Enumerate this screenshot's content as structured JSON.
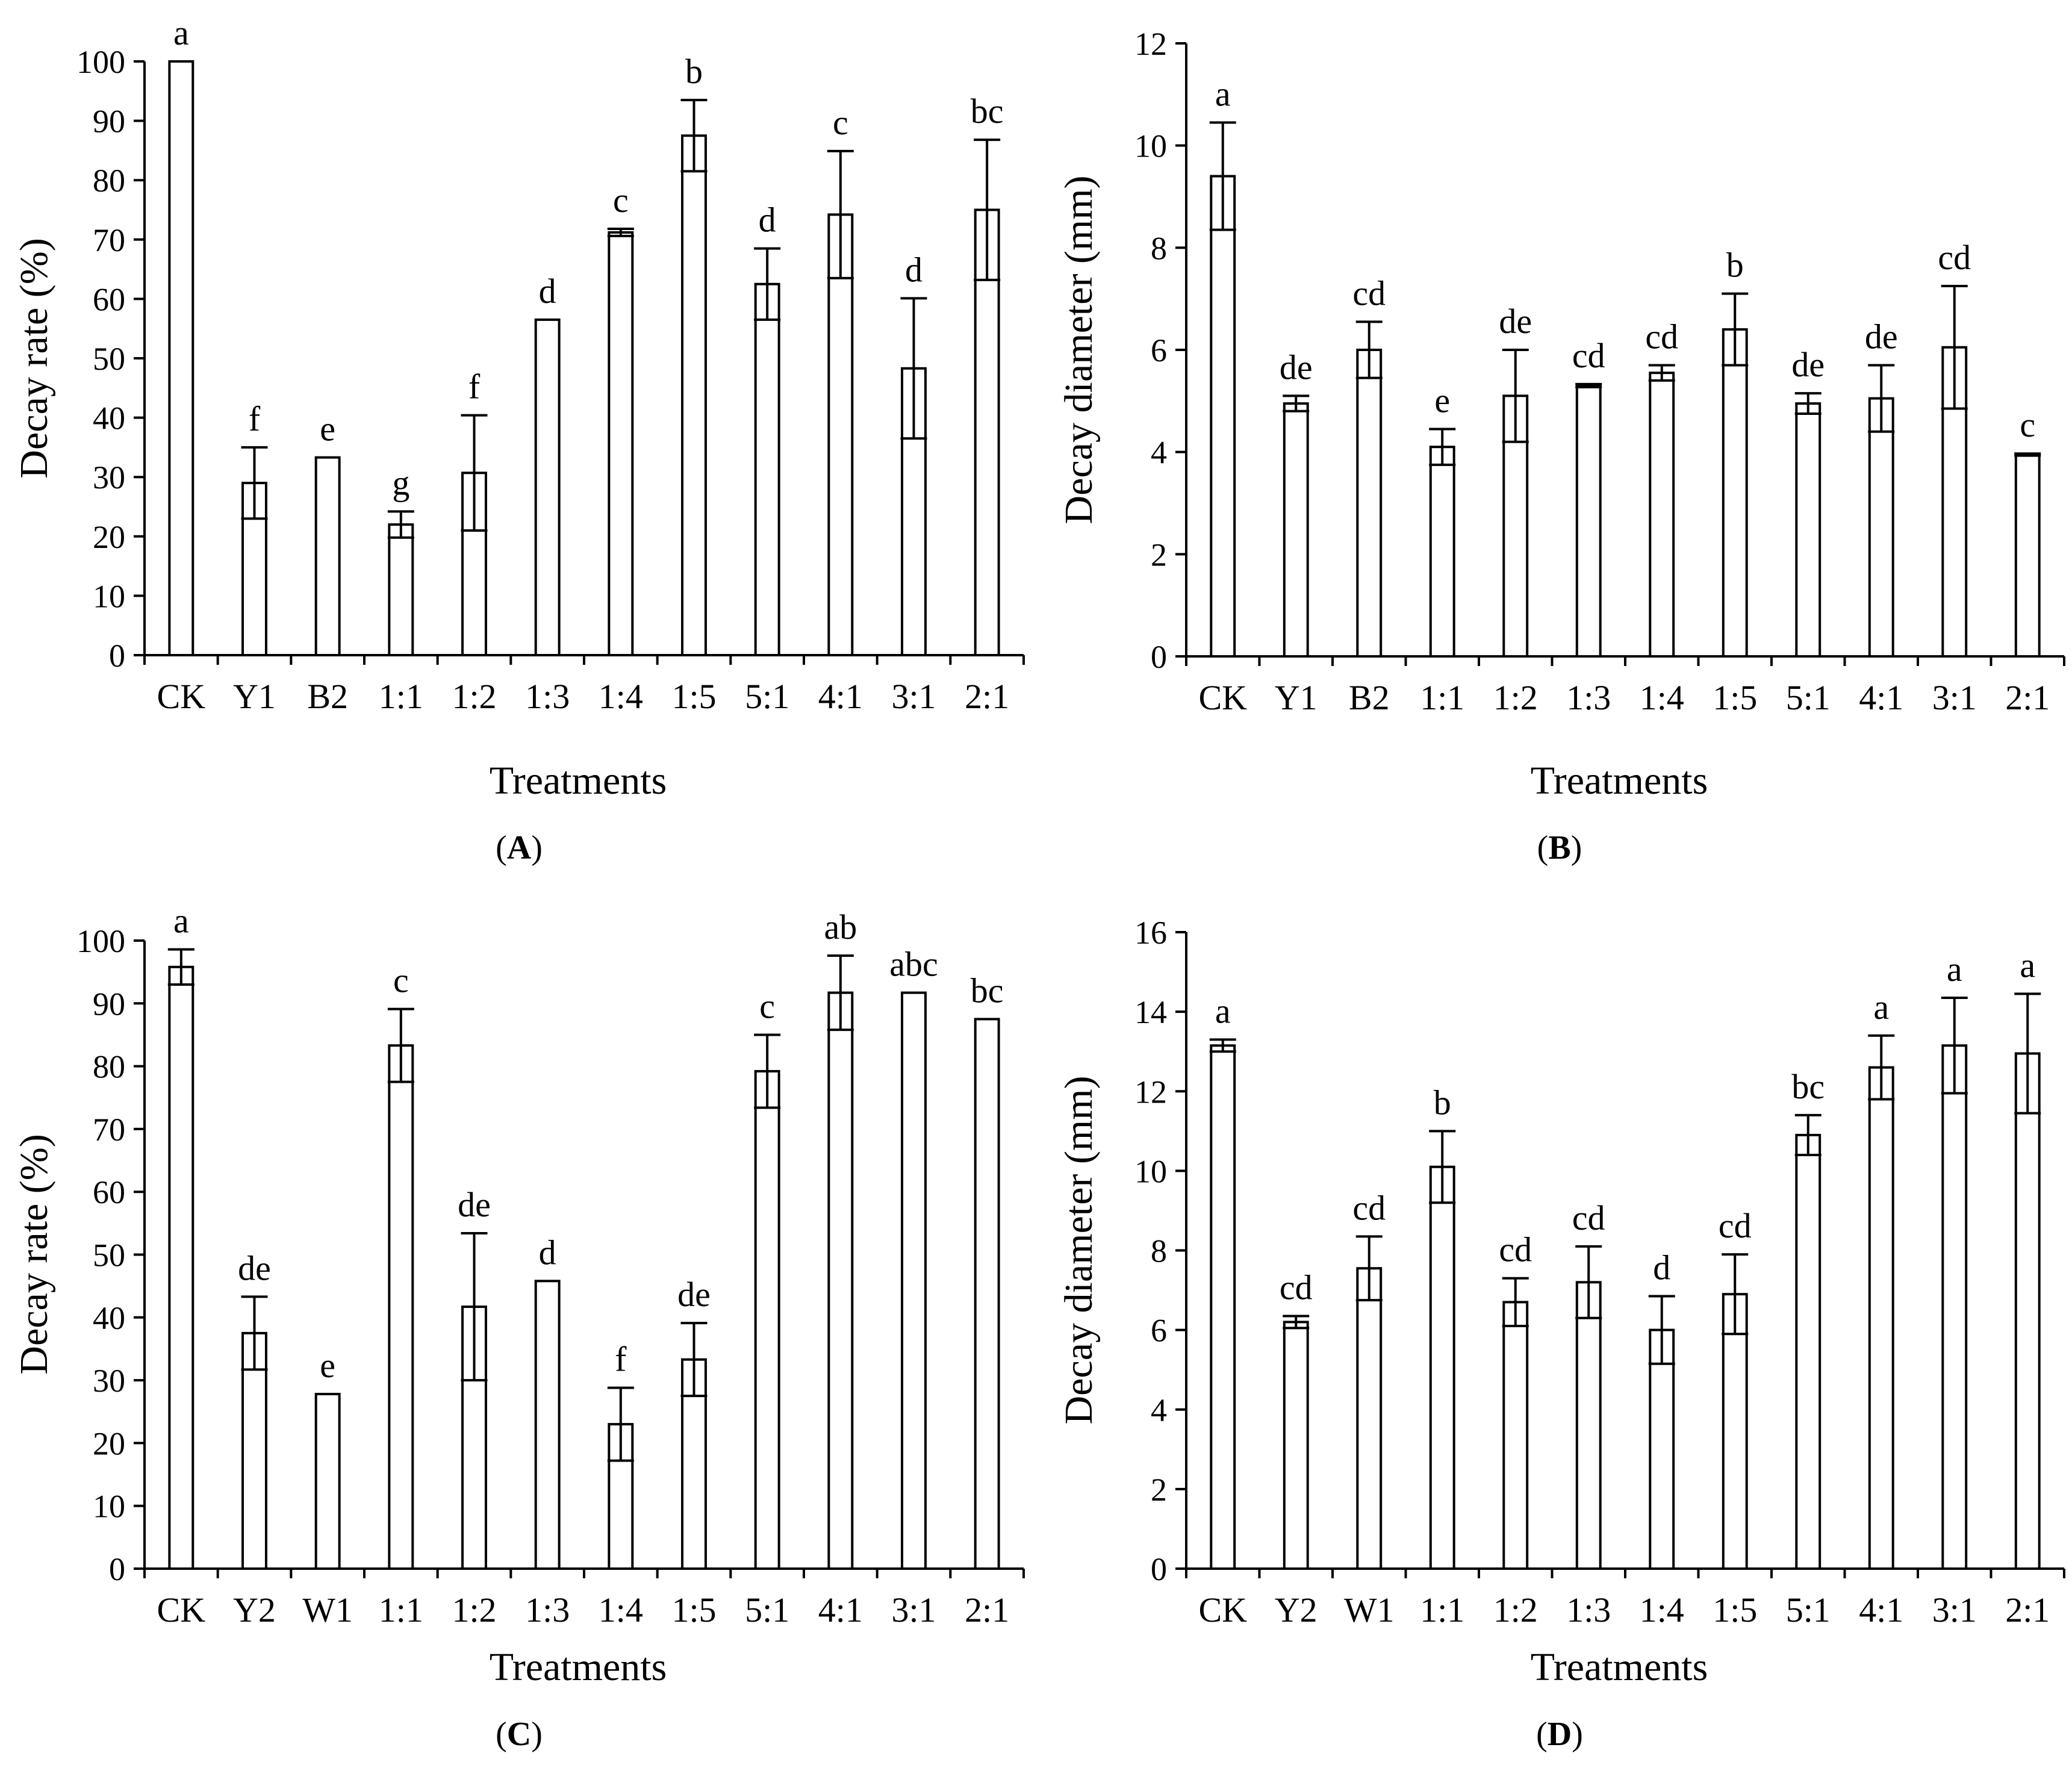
{
  "chart_data": [
    {
      "type": "bar",
      "panel": "A",
      "ylabel": "Decay rate (%)",
      "xlabel": "Treatments",
      "ylim": [
        0,
        100
      ],
      "yticks": [
        0,
        10,
        20,
        30,
        40,
        50,
        60,
        70,
        80,
        90,
        100
      ],
      "categories": [
        "CK",
        "Y1",
        "B2",
        "1:1",
        "1:2",
        "1:3",
        "1:4",
        "1:5",
        "5:1",
        "4:1",
        "3:1",
        "2:1"
      ],
      "values": [
        100,
        29,
        33.3,
        22,
        30.7,
        56.5,
        71.2,
        87.5,
        62.5,
        74.2,
        48.3,
        75
      ],
      "errors": [
        0,
        6,
        0,
        2.2,
        9.7,
        0,
        0.6,
        6,
        6,
        10.7,
        11.8,
        11.8
      ],
      "letters": [
        "a",
        "f",
        "e",
        "g",
        "f",
        "d",
        "c",
        "b",
        "d",
        "c",
        "d",
        "bc"
      ]
    },
    {
      "type": "bar",
      "panel": "B",
      "ylabel": "Decay diameter (mm)",
      "xlabel": "Treatments",
      "ylim": [
        0,
        12
      ],
      "yticks": [
        0,
        2,
        4,
        6,
        8,
        10,
        12
      ],
      "categories": [
        "CK",
        "Y1",
        "B2",
        "1:1",
        "1:2",
        "1:3",
        "1:4",
        "1:5",
        "5:1",
        "4:1",
        "3:1",
        "2:1"
      ],
      "values": [
        9.4,
        4.95,
        6,
        4.1,
        5.1,
        5.3,
        5.55,
        6.4,
        4.95,
        5.05,
        6.05,
        3.95
      ],
      "errors": [
        1.05,
        0.15,
        0.55,
        0.35,
        0.9,
        0.03,
        0.15,
        0.7,
        0.2,
        0.65,
        1.2,
        0.02
      ],
      "letters": [
        "a",
        "de",
        "cd",
        "e",
        "de",
        "cd",
        "cd",
        "b",
        "de",
        "de",
        "cd",
        "c"
      ]
    },
    {
      "type": "bar",
      "panel": "C",
      "ylabel": "Decay rate (%)",
      "xlabel": "Treatments",
      "ylim": [
        0,
        100
      ],
      "yticks": [
        0,
        10,
        20,
        30,
        40,
        50,
        60,
        70,
        80,
        90,
        100
      ],
      "categories": [
        "CK",
        "Y2",
        "W1",
        "1:1",
        "1:2",
        "1:3",
        "1:4",
        "1:5",
        "5:1",
        "4:1",
        "3:1",
        "2:1"
      ],
      "values": [
        95.8,
        37.5,
        27.8,
        83.3,
        41.7,
        45.8,
        23,
        33.3,
        79.2,
        91.7,
        91.7,
        87.5
      ],
      "errors": [
        2.8,
        5.8,
        0,
        5.8,
        11.7,
        0,
        5.8,
        5.8,
        5.8,
        5.9,
        0,
        0
      ],
      "letters": [
        "a",
        "de",
        "e",
        "c",
        "de",
        "d",
        "f",
        "de",
        "c",
        "ab",
        "abc",
        "bc"
      ]
    },
    {
      "type": "bar",
      "panel": "D",
      "ylabel": "Decay diameter (mm)",
      "xlabel": "Treatments",
      "ylim": [
        0,
        16
      ],
      "yticks": [
        0,
        2,
        4,
        6,
        8,
        10,
        12,
        14,
        16
      ],
      "categories": [
        "CK",
        "Y2",
        "W1",
        "1:1",
        "1:2",
        "1:3",
        "1:4",
        "1:5",
        "5:1",
        "4:1",
        "3:1",
        "2:1"
      ],
      "values": [
        13.15,
        6.2,
        7.55,
        10.1,
        6.7,
        7.2,
        6,
        6.9,
        10.9,
        12.6,
        13.15,
        12.95
      ],
      "errors": [
        0.15,
        0.15,
        0.8,
        0.9,
        0.6,
        0.9,
        0.85,
        1,
        0.5,
        0.8,
        1.2,
        1.5
      ],
      "letters": [
        "a",
        "cd",
        "cd",
        "b",
        "cd",
        "cd",
        "d",
        "cd",
        "bc",
        "a",
        "a",
        "a"
      ]
    }
  ],
  "panel_labels": {
    "A": {
      "open": "(",
      "letter": "A",
      "close": ")"
    },
    "B": {
      "open": "(",
      "letter": "B",
      "close": ")"
    },
    "C": {
      "open": "(",
      "letter": "C",
      "close": ")"
    },
    "D": {
      "open": "(",
      "letter": "D",
      "close": ")"
    }
  }
}
